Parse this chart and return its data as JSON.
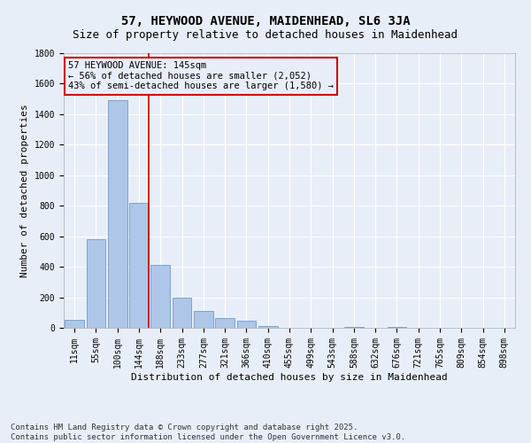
{
  "title": "57, HEYWOOD AVENUE, MAIDENHEAD, SL6 3JA",
  "subtitle": "Size of property relative to detached houses in Maidenhead",
  "xlabel": "Distribution of detached houses by size in Maidenhead",
  "ylabel": "Number of detached properties",
  "categories": [
    "11sqm",
    "55sqm",
    "100sqm",
    "144sqm",
    "188sqm",
    "233sqm",
    "277sqm",
    "321sqm",
    "366sqm",
    "410sqm",
    "455sqm",
    "499sqm",
    "543sqm",
    "588sqm",
    "632sqm",
    "676sqm",
    "721sqm",
    "765sqm",
    "809sqm",
    "854sqm",
    "898sqm"
  ],
  "values": [
    50,
    580,
    1490,
    820,
    410,
    200,
    110,
    65,
    45,
    10,
    0,
    0,
    0,
    5,
    0,
    4,
    0,
    0,
    0,
    0,
    0
  ],
  "bar_color": "#aec6e8",
  "bar_edge_color": "#5a8fc0",
  "background_color": "#e8eef8",
  "grid_color": "#ffffff",
  "annotation_box_color": "#cc0000",
  "annotation_text": "57 HEYWOOD AVENUE: 145sqm\n← 56% of detached houses are smaller (2,052)\n43% of semi-detached houses are larger (1,580) →",
  "vline_color": "#cc0000",
  "vline_x": 3.45,
  "ylim": [
    0,
    1800
  ],
  "yticks": [
    0,
    200,
    400,
    600,
    800,
    1000,
    1200,
    1400,
    1600,
    1800
  ],
  "footnote": "Contains HM Land Registry data © Crown copyright and database right 2025.\nContains public sector information licensed under the Open Government Licence v3.0.",
  "title_fontsize": 10,
  "subtitle_fontsize": 9,
  "xlabel_fontsize": 8,
  "ylabel_fontsize": 8,
  "tick_fontsize": 7,
  "annotation_fontsize": 7.5,
  "footnote_fontsize": 6.5
}
